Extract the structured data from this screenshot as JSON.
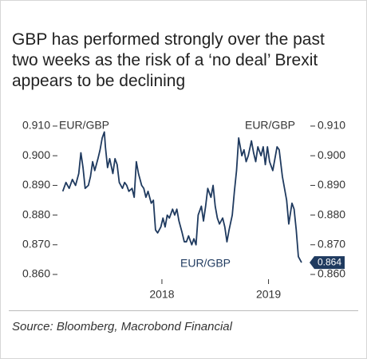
{
  "chart_data": {
    "type": "line",
    "title": "GBP has performed strongly over the past two weeks as the risk of a ‘no deal’ Brexit appears to be declining",
    "ylabel": "EUR/GBP",
    "y2label": "EUR/GBP",
    "source": "Source: Bloomberg, Macrobond Financial",
    "xlim": [
      2017.05,
      2019.37
    ],
    "xticks": [
      2018,
      2019
    ],
    "ylim": [
      0.86,
      0.91
    ],
    "yticks": [
      {
        "value": 0.86,
        "label": "0.860"
      },
      {
        "value": 0.87,
        "label": "0.870"
      },
      {
        "value": 0.88,
        "label": "0.880"
      },
      {
        "value": 0.89,
        "label": "0.890"
      },
      {
        "value": 0.9,
        "label": "0.900"
      },
      {
        "value": 0.91,
        "label": "0.910"
      }
    ],
    "y2lim": [
      0.86,
      0.91
    ],
    "y2ticks": [
      {
        "value": 0.86,
        "label": "0.860"
      },
      {
        "value": 0.87,
        "label": "0.870"
      },
      {
        "value": 0.88,
        "label": "0.880"
      },
      {
        "value": 0.89,
        "label": "0.890"
      },
      {
        "value": 0.9,
        "label": "0.900"
      },
      {
        "value": 0.91,
        "label": "0.910"
      }
    ],
    "grid": false,
    "x": [
      2017.07,
      2017.1,
      2017.13,
      2017.16,
      2017.19,
      2017.22,
      2017.24,
      2017.26,
      2017.28,
      2017.31,
      2017.33,
      2017.35,
      2017.37,
      2017.4,
      2017.42,
      2017.44,
      2017.46,
      2017.47,
      2017.49,
      2017.51,
      2017.54,
      2017.56,
      2017.58,
      2017.6,
      2017.63,
      2017.65,
      2017.67,
      2017.69,
      2017.72,
      2017.74,
      2017.76,
      2017.78,
      2017.81,
      2017.83,
      2017.85,
      2017.87,
      2017.9,
      2017.92,
      2017.94,
      2017.96,
      2017.99,
      2018.01,
      2018.03,
      2018.05,
      2018.07,
      2018.1,
      2018.12,
      2018.14,
      2018.16,
      2018.19,
      2018.21,
      2018.23,
      2018.25,
      2018.28,
      2018.3,
      2018.32,
      2018.34,
      2018.37,
      2018.39,
      2018.41,
      2018.43,
      2018.46,
      2018.48,
      2018.5,
      2018.52,
      2018.54,
      2018.57,
      2018.59,
      2018.61,
      2018.63,
      2018.66,
      2018.68,
      2018.7,
      2018.72,
      2018.75,
      2018.77,
      2018.79,
      2018.81,
      2018.84,
      2018.86,
      2018.88,
      2018.9,
      2018.93,
      2018.95,
      2018.97,
      2018.99,
      2019.01,
      2019.04,
      2019.06,
      2019.08,
      2019.1,
      2019.13,
      2019.15,
      2019.17,
      2019.19,
      2019.22,
      2019.24,
      2019.26,
      2019.28,
      2019.31
    ],
    "series": [
      {
        "name": "EUR/GBP",
        "color": "#1f3a5f",
        "values": [
          0.888,
          0.891,
          0.889,
          0.892,
          0.89,
          0.894,
          0.901,
          0.896,
          0.889,
          0.89,
          0.893,
          0.898,
          0.895,
          0.899,
          0.902,
          0.906,
          0.908,
          0.903,
          0.896,
          0.899,
          0.894,
          0.899,
          0.897,
          0.891,
          0.889,
          0.891,
          0.89,
          0.888,
          0.889,
          0.886,
          0.898,
          0.894,
          0.89,
          0.889,
          0.886,
          0.888,
          0.884,
          0.885,
          0.875,
          0.874,
          0.876,
          0.879,
          0.876,
          0.88,
          0.879,
          0.882,
          0.88,
          0.882,
          0.878,
          0.874,
          0.871,
          0.871,
          0.873,
          0.87,
          0.872,
          0.87,
          0.88,
          0.883,
          0.878,
          0.883,
          0.889,
          0.886,
          0.89,
          0.883,
          0.879,
          0.877,
          0.879,
          0.876,
          0.871,
          0.875,
          0.88,
          0.888,
          0.895,
          0.906,
          0.9,
          0.902,
          0.898,
          0.9,
          0.905,
          0.901,
          0.898,
          0.903,
          0.9,
          0.903,
          0.897,
          0.903,
          0.898,
          0.895,
          0.899,
          0.903,
          0.902,
          0.893,
          0.889,
          0.885,
          0.877,
          0.884,
          0.882,
          0.875,
          0.866,
          0.864
        ]
      }
    ]
  }
}
